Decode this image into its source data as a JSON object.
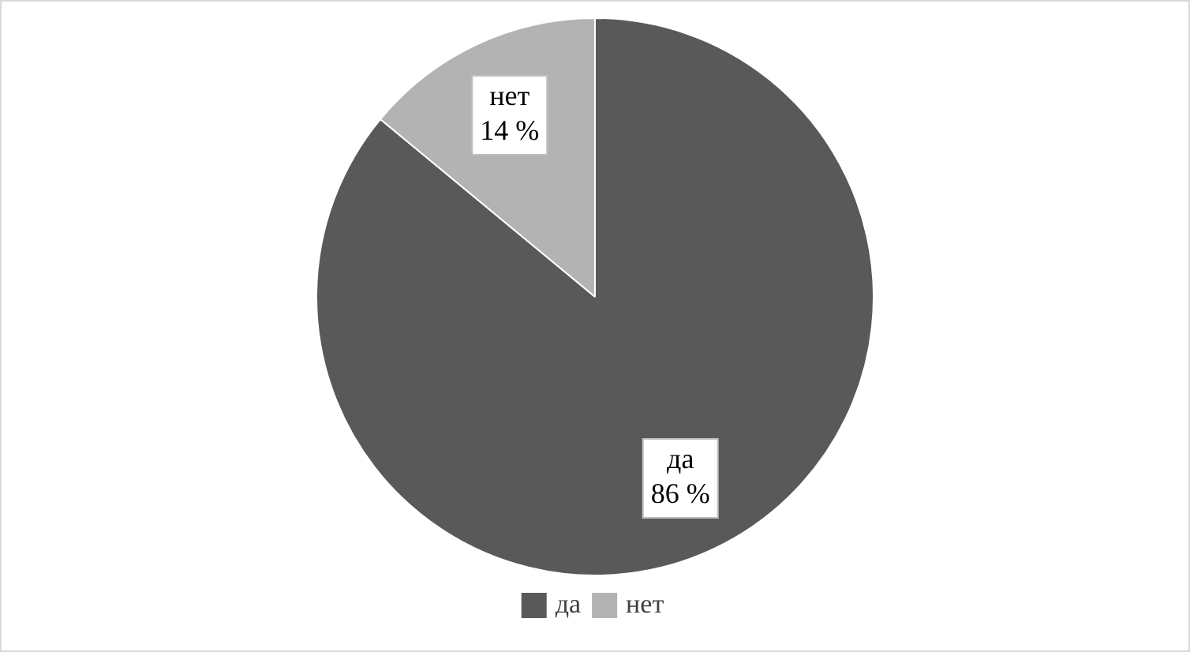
{
  "chart_data": {
    "type": "pie",
    "categories": [
      "да",
      "нет"
    ],
    "values": [
      86,
      14
    ],
    "colors": [
      "#595959",
      "#b3b3b3"
    ],
    "value_labels": [
      "86 %",
      "14 %"
    ],
    "legend": "bottom"
  }
}
